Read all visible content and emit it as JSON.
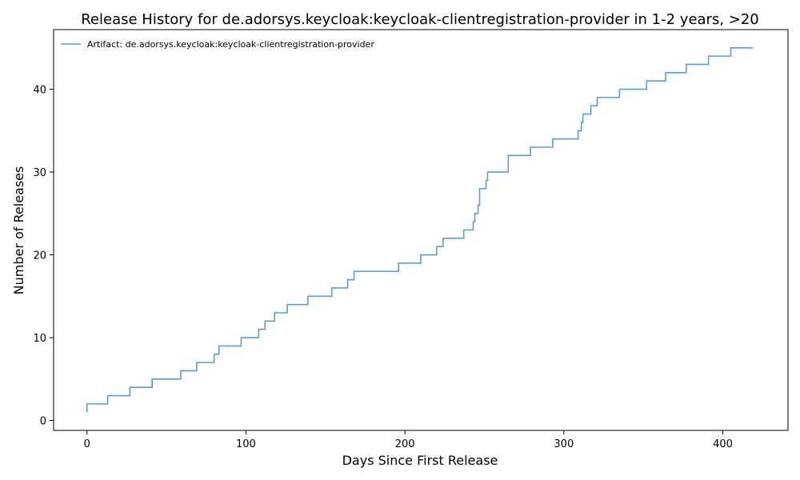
{
  "chart_data": {
    "type": "line",
    "step": "post",
    "title": "Release History for de.adorsys.keycloak:keycloak-clientregistration-provider in 1-2 years, >20",
    "xlabel": "Days Since First Release",
    "ylabel": "Number of Releases",
    "xlim": [
      -21,
      441
    ],
    "ylim": [
      -1.2,
      47.2
    ],
    "xticks": [
      0,
      100,
      200,
      300,
      400
    ],
    "yticks": [
      0,
      10,
      20,
      30,
      40
    ],
    "legend": {
      "placement": "upper-left"
    },
    "series": [
      {
        "name": "Artifact: de.adorsys.keycloak:keycloak-clientregistration-provider",
        "color": "#5b9ec9",
        "x": [
          0,
          0,
          13,
          27,
          41,
          59,
          69,
          80,
          82,
          83,
          97,
          108,
          112,
          118,
          126,
          139,
          154,
          164,
          167,
          168,
          196,
          210,
          220,
          222,
          224,
          237,
          243,
          244,
          246,
          247,
          248,
          251,
          252,
          265,
          279,
          293,
          309,
          311,
          312,
          317,
          321,
          335,
          352,
          364,
          377,
          391,
          405,
          419
        ],
        "y": [
          1,
          2,
          3,
          4,
          5,
          6,
          7,
          8,
          8,
          9,
          10,
          11,
          12,
          13,
          14,
          15,
          16,
          17,
          17,
          18,
          19,
          20,
          21,
          21,
          22,
          23,
          24,
          25,
          26,
          28,
          28,
          29,
          30,
          32,
          33,
          34,
          35,
          36,
          37,
          38,
          39,
          40,
          41,
          42,
          43,
          44,
          45,
          45
        ]
      }
    ]
  }
}
